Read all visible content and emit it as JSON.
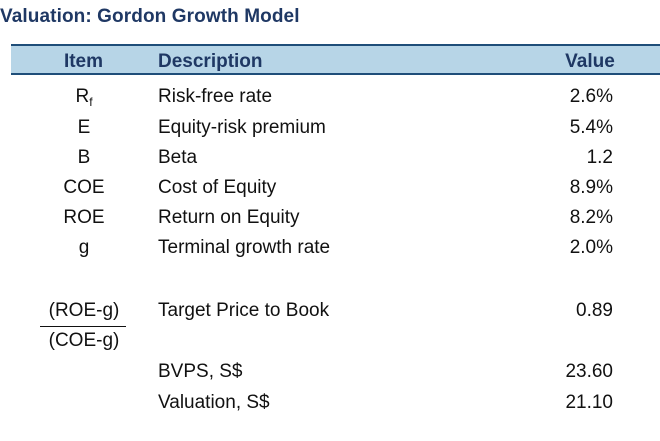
{
  "title": "Valuation: Gordon Growth Model",
  "header": {
    "item": "Item",
    "description": "Description",
    "value": "Value"
  },
  "rows": [
    {
      "item_main": "R",
      "item_sub": "f",
      "description": "Risk-free rate",
      "value": "2.6%"
    },
    {
      "item": "E",
      "description": "Equity-risk premium",
      "value": "5.4%"
    },
    {
      "item": "B",
      "description": "Beta",
      "value": "1.2"
    },
    {
      "item": "COE",
      "description": "Cost of Equity",
      "value": "8.9%"
    },
    {
      "item": "ROE",
      "description": "Return on Equity",
      "value": "8.2%"
    },
    {
      "item": "g",
      "description": "Terminal growth rate",
      "value": "2.0%"
    }
  ],
  "target": {
    "numerator": "(ROE-g)",
    "denominator": "(COE-g)",
    "description": "Target Price to Book",
    "value": "0.89"
  },
  "bvps": {
    "description": "BVPS, S$",
    "value": "23.60"
  },
  "valuation": {
    "description": "Valuation, S$",
    "value": "21.10"
  },
  "colors": {
    "title": "#1f3864",
    "header_band": "#b7d5e7",
    "header_rule": "#1f4e79"
  }
}
